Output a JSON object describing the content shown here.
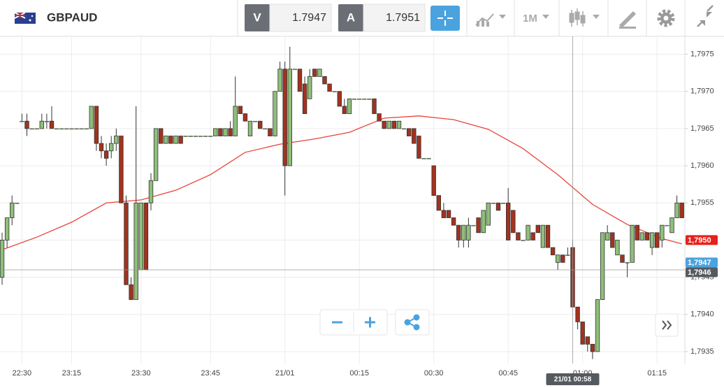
{
  "header": {
    "symbol": "GBPAUD",
    "bid_label": "V",
    "bid": 1.7947,
    "ask_label": "A",
    "ask": 1.7951,
    "timeframe": "1M"
  },
  "chart_data": {
    "type": "candlestick",
    "categories": [
      null,
      null,
      null,
      null,
      "22:30",
      null,
      null,
      null,
      null,
      null,
      null,
      null,
      null,
      null,
      "23:15",
      null,
      null,
      null,
      null,
      null,
      null,
      null,
      null,
      null,
      null,
      null,
      null,
      null,
      "23:30",
      null,
      null,
      null,
      null,
      null,
      null,
      null,
      null,
      null,
      null,
      null,
      null,
      null,
      "23:45",
      null,
      null,
      null,
      null,
      null,
      null,
      null,
      null,
      null,
      null,
      null,
      null,
      null,
      null,
      "21/01",
      null,
      null,
      null,
      null,
      null,
      null,
      null,
      null,
      null,
      null,
      null,
      null,
      null,
      null,
      "00:15",
      null,
      null,
      null,
      null,
      null,
      null,
      null,
      null,
      null,
      null,
      null,
      null,
      null,
      null,
      "00:30",
      null,
      null,
      null,
      null,
      null,
      null,
      null,
      null,
      null,
      null,
      null,
      null,
      null,
      null,
      "00:45",
      null,
      null,
      null,
      null,
      null,
      null,
      null,
      null,
      null,
      null,
      null,
      null,
      null,
      null,
      "01:00",
      null,
      null,
      null,
      null,
      null,
      null,
      null,
      null,
      null,
      null,
      null,
      null,
      null,
      null,
      "01:15",
      null,
      null,
      null,
      null,
      null
    ],
    "ohlc": [
      [
        1.7945,
        1.7951,
        1.7944,
        1.795
      ],
      [
        1.795,
        1.7953,
        1.7949,
        1.7953
      ],
      [
        1.7953,
        1.7956,
        1.7952,
        1.7955
      ],
      [
        1.7955,
        1.7955,
        1.7955,
        1.7955
      ],
      [
        1.7966,
        1.7967,
        1.7966,
        1.7966
      ],
      [
        1.7966,
        1.7967,
        1.7964,
        1.7965
      ],
      [
        1.7965,
        1.7965,
        1.7965,
        1.7965
      ],
      [
        1.7965,
        1.7965,
        1.7965,
        1.7965
      ],
      [
        1.7965,
        1.7967,
        1.7965,
        1.7966
      ],
      [
        1.7966,
        1.7967,
        1.7965,
        1.7966
      ],
      [
        1.7966,
        1.7968,
        1.7965,
        1.7965
      ],
      [
        1.7965,
        1.7965,
        1.7965,
        1.7965
      ],
      [
        1.7965,
        1.7965,
        1.7965,
        1.7965
      ],
      [
        1.7965,
        1.7965,
        1.7965,
        1.7965
      ],
      [
        1.7965,
        1.7965,
        1.7965,
        1.7965
      ],
      [
        1.7965,
        1.7965,
        1.7965,
        1.7965
      ],
      [
        1.7965,
        1.7965,
        1.7965,
        1.7965
      ],
      [
        1.7965,
        1.7965,
        1.7965,
        1.7965
      ],
      [
        1.7965,
        1.7968,
        1.7965,
        1.7968
      ],
      [
        1.7968,
        1.7968,
        1.7962,
        1.7963
      ],
      [
        1.7963,
        1.7964,
        1.7961,
        1.7962
      ],
      [
        1.7962,
        1.7963,
        1.796,
        1.7961
      ],
      [
        1.7962,
        1.7964,
        1.7961,
        1.7963
      ],
      [
        1.7963,
        1.7965,
        1.7962,
        1.7964
      ],
      [
        1.7964,
        1.7964,
        1.7955,
        1.7955
      ],
      [
        1.7955,
        1.7956,
        1.7944,
        1.7944
      ],
      [
        1.7944,
        1.7945,
        1.7942,
        1.7942
      ],
      [
        1.7942,
        1.7968,
        1.7942,
        1.7955
      ],
      [
        1.7946,
        1.7955,
        1.7946,
        1.7955
      ],
      [
        1.7955,
        1.7955,
        1.7946,
        1.7946
      ],
      [
        1.7955,
        1.7959,
        1.7954,
        1.7958
      ],
      [
        1.7958,
        1.7965,
        1.7958,
        1.7965
      ],
      [
        1.7965,
        1.7965,
        1.7963,
        1.7963
      ],
      [
        1.7963,
        1.7964,
        1.7963,
        1.7964
      ],
      [
        1.7964,
        1.7964,
        1.7963,
        1.7963
      ],
      [
        1.7963,
        1.7964,
        1.7963,
        1.7964
      ],
      [
        1.7964,
        1.7964,
        1.7963,
        1.7963
      ],
      [
        1.7964,
        1.7964,
        1.7964,
        1.7964
      ],
      [
        1.7964,
        1.7964,
        1.7964,
        1.7964
      ],
      [
        1.7964,
        1.7964,
        1.7964,
        1.7964
      ],
      [
        1.7964,
        1.7964,
        1.7964,
        1.7964
      ],
      [
        1.7964,
        1.7964,
        1.7964,
        1.7964
      ],
      [
        1.7964,
        1.7964,
        1.7964,
        1.7964
      ],
      [
        1.7964,
        1.7965,
        1.7964,
        1.7965
      ],
      [
        1.7965,
        1.7965,
        1.7964,
        1.7964
      ],
      [
        1.7964,
        1.7965,
        1.7964,
        1.7965
      ],
      [
        1.7965,
        1.7966,
        1.7964,
        1.7964
      ],
      [
        1.7964,
        1.7972,
        1.7964,
        1.7968
      ],
      [
        1.7968,
        1.7968,
        1.7967,
        1.7967
      ],
      [
        1.7967,
        1.7967,
        1.7966,
        1.7966
      ],
      [
        1.7964,
        1.7966,
        1.7964,
        1.7966
      ],
      [
        1.7966,
        1.7966,
        1.7966,
        1.7966
      ],
      [
        1.7966,
        1.7966,
        1.7965,
        1.7965
      ],
      [
        1.7965,
        1.7965,
        1.7965,
        1.7965
      ],
      [
        1.7965,
        1.7965,
        1.7964,
        1.7964
      ],
      [
        1.7964,
        1.797,
        1.7964,
        1.797
      ],
      [
        1.797,
        1.7974,
        1.797,
        1.7973
      ],
      [
        1.7973,
        1.7974,
        1.7956,
        1.796
      ],
      [
        1.796,
        1.7976,
        1.796,
        1.7973
      ],
      [
        1.7973,
        1.7973,
        1.7973,
        1.7973
      ],
      [
        1.7973,
        1.7973,
        1.797,
        1.797
      ],
      [
        1.7971,
        1.7972,
        1.7967,
        1.7967
      ],
      [
        1.7969,
        1.7973,
        1.7969,
        1.7972
      ],
      [
        1.7973,
        1.7973,
        1.7972,
        1.7972
      ],
      [
        1.7972,
        1.7973,
        1.7972,
        1.7973
      ],
      [
        1.7972,
        1.7972,
        1.7971,
        1.7971
      ],
      [
        1.7971,
        1.7971,
        1.797,
        1.797
      ],
      [
        1.797,
        1.797,
        1.797,
        1.797
      ],
      [
        1.797,
        1.797,
        1.7968,
        1.7968
      ],
      [
        1.7968,
        1.7969,
        1.7967,
        1.7967
      ],
      [
        1.7967,
        1.7969,
        1.7967,
        1.7969
      ],
      [
        1.7969,
        1.7969,
        1.7969,
        1.7969
      ],
      [
        1.7969,
        1.7969,
        1.7969,
        1.7969
      ],
      [
        1.7969,
        1.7969,
        1.7969,
        1.7969
      ],
      [
        1.7969,
        1.7969,
        1.7969,
        1.7969
      ],
      [
        1.7969,
        1.7969,
        1.7967,
        1.7967
      ],
      [
        1.7967,
        1.7967,
        1.7966,
        1.7966
      ],
      [
        1.7966,
        1.7966,
        1.7965,
        1.7965
      ],
      [
        1.7965,
        1.7966,
        1.7965,
        1.7966
      ],
      [
        1.7966,
        1.7966,
        1.7965,
        1.7965
      ],
      [
        1.7965,
        1.7966,
        1.7965,
        1.7966
      ],
      [
        1.7965,
        1.7965,
        1.7965,
        1.7965
      ],
      [
        1.7965,
        1.7965,
        1.7964,
        1.7964
      ],
      [
        1.7965,
        1.7965,
        1.7963,
        1.7963
      ],
      [
        1.7964,
        1.7964,
        1.7961,
        1.7961
      ],
      [
        1.7961,
        1.7961,
        1.7961,
        1.7961
      ],
      [
        1.7961,
        1.7961,
        1.7961,
        1.7961
      ],
      [
        1.796,
        1.796,
        1.7956,
        1.7956
      ],
      [
        1.7956,
        1.7956,
        1.7954,
        1.7954
      ],
      [
        1.7954,
        1.7955,
        1.7953,
        1.7953
      ],
      [
        1.7954,
        1.7954,
        1.7953,
        1.7953
      ],
      [
        1.7953,
        1.7953,
        1.7952,
        1.7952
      ],
      [
        1.7952,
        1.7952,
        1.7949,
        1.795
      ],
      [
        1.795,
        1.7952,
        1.7949,
        1.7952
      ],
      [
        1.795,
        1.7953,
        1.7949,
        1.7952
      ],
      [
        1.7952,
        1.7952,
        1.7952,
        1.7952
      ],
      [
        1.7953,
        1.7953,
        1.7951,
        1.7951
      ],
      [
        1.7951,
        1.7954,
        1.7951,
        1.7954
      ],
      [
        1.7952,
        1.7955,
        1.7952,
        1.7955
      ],
      [
        1.7955,
        1.7955,
        1.7955,
        1.7955
      ],
      [
        1.7955,
        1.7955,
        1.7954,
        1.7954
      ],
      [
        1.7955,
        1.7955,
        1.7955,
        1.7955
      ],
      [
        1.7955,
        1.7957,
        1.795,
        1.795
      ],
      [
        1.7954,
        1.7954,
        1.7951,
        1.7951
      ],
      [
        1.7951,
        1.7951,
        1.795,
        1.795
      ],
      [
        1.795,
        1.795,
        1.795,
        1.795
      ],
      [
        1.795,
        1.7952,
        1.795,
        1.7952
      ],
      [
        1.7951,
        1.7951,
        1.795,
        1.795
      ],
      [
        1.7952,
        1.7952,
        1.7951,
        1.7951
      ],
      [
        1.7949,
        1.7952,
        1.7949,
        1.7952
      ],
      [
        1.7952,
        1.7952,
        1.7949,
        1.7949
      ],
      [
        1.7949,
        1.7949,
        1.7948,
        1.7948
      ],
      [
        1.7947,
        1.7948,
        1.7946,
        1.7948
      ],
      [
        1.7948,
        1.7948,
        1.7947,
        1.7947
      ],
      [
        1.7948,
        1.7949,
        1.7948,
        1.7948
      ],
      [
        1.7949,
        1.795,
        1.7941,
        1.7941
      ],
      [
        1.7941,
        1.7941,
        1.7938,
        1.7939
      ],
      [
        1.7939,
        1.7939,
        1.7936,
        1.7936
      ],
      [
        1.7937,
        1.7937,
        1.7935,
        1.7936
      ],
      [
        1.7936,
        1.7936,
        1.7934,
        1.7935
      ],
      [
        1.7935,
        1.7942,
        1.7935,
        1.7942
      ],
      [
        1.7942,
        1.7951,
        1.7942,
        1.7951
      ],
      [
        1.795,
        1.7952,
        1.795,
        1.7951
      ],
      [
        1.7951,
        1.7951,
        1.7949,
        1.7949
      ],
      [
        1.7948,
        1.795,
        1.7948,
        1.795
      ],
      [
        1.7948,
        1.7948,
        1.7947,
        1.7947
      ],
      [
        1.7947,
        1.7947,
        1.7945,
        1.7947
      ],
      [
        1.7947,
        1.7952,
        1.7947,
        1.7952
      ],
      [
        1.7952,
        1.7952,
        1.795,
        1.795
      ],
      [
        1.795,
        1.7951,
        1.795,
        1.7951
      ],
      [
        1.7951,
        1.7951,
        1.795,
        1.795
      ],
      [
        1.7949,
        1.7951,
        1.7948,
        1.7951
      ],
      [
        1.7951,
        1.7951,
        1.7949,
        1.7949
      ],
      [
        1.795,
        1.7952,
        1.7949,
        1.7952
      ],
      [
        1.7952,
        1.7952,
        1.7952,
        1.7952
      ],
      [
        1.7951,
        1.7953,
        1.7951,
        1.7953
      ],
      [
        1.7953,
        1.7956,
        1.7953,
        1.7955
      ],
      [
        1.7955,
        1.7955,
        1.7953,
        1.7953
      ]
    ],
    "up_color": "#8fbf7a",
    "down_color": "#a3321e",
    "moving_average": {
      "color": "#e8433a",
      "x": [
        0,
        7,
        14,
        21,
        28,
        35,
        42,
        49,
        56,
        63,
        70,
        77,
        84,
        91,
        98,
        105,
        112,
        119,
        126,
        133,
        137
      ],
      "values": [
        1.79487,
        1.79504,
        1.79524,
        1.7955,
        1.79554,
        1.79567,
        1.79588,
        1.79618,
        1.79629,
        1.79636,
        1.79645,
        1.79664,
        1.79667,
        1.79662,
        1.79649,
        1.79623,
        1.79588,
        1.79548,
        1.79521,
        1.79502,
        1.79495
      ]
    },
    "ylim": [
      1.79334,
      1.79774
    ],
    "yticks": [
      {
        "value": 1.7935,
        "label": "1,7935"
      },
      {
        "value": 1.794,
        "label": "1,7940"
      },
      {
        "value": 1.7945,
        "label": "1,7945"
      },
      {
        "value": 1.795,
        "label": "1,7950"
      },
      {
        "value": 1.7955,
        "label": "1,7955"
      },
      {
        "value": 1.796,
        "label": "1,7960"
      },
      {
        "value": 1.7965,
        "label": "1,7965"
      },
      {
        "value": 1.797,
        "label": "1,7970"
      },
      {
        "value": 1.7975,
        "label": "1,7975"
      }
    ],
    "grid": true,
    "price_markers": [
      {
        "value": 1.795,
        "label": "1,7950",
        "color": "#e8201a"
      },
      {
        "value": 1.7947,
        "label": "1,7947",
        "color": "#4aa3df"
      }
    ],
    "crosshair": {
      "index": 115,
      "x_label": "21/01 00:58",
      "value": 1.7946,
      "label": "1,7946",
      "color": "#555a60"
    }
  }
}
